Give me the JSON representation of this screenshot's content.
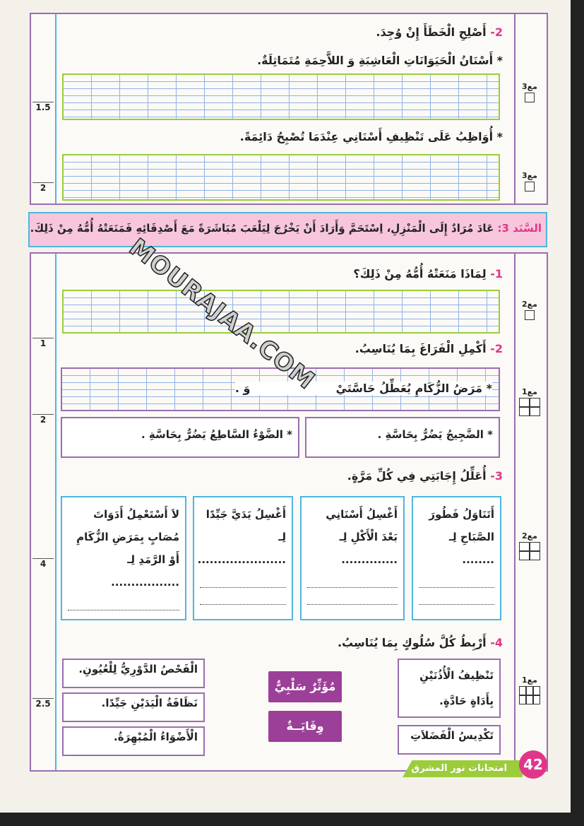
{
  "section_top": {
    "q2": {
      "number": "2-",
      "title": "أَصْلِحِ الْخَطَأَ إِنْ وُجِدَ.",
      "items": [
        "* أَسْنَانُ الْحَيَوَانَاتِ الْعَاشِبَةِ وَ اللاَّحِمَةِ مُتَمَاثِلَةٌ.",
        "* أُوَاظِبُ عَلَى تَنْظِيفِ أَسْنَانِي عِنْدَمَا تُصْبِحُ دَائِمَةً."
      ]
    },
    "scores": [
      "1.5",
      "2"
    ],
    "criteria": [
      "مع3",
      "مع3"
    ]
  },
  "sanad": {
    "label": "السَّنَد 3:",
    "text": "عَادَ مُرَادٌ إِلَى الْمَنْزِلِ، اِسْتَحَمَّ وَأَرَادَ أَنْ يَخْرُجَ لِيَلْعَبَ مُبَاشَرَةً مَعَ أَصْدِقَائِهِ فَمَنَعَتْهُ أُمُّهُ مِنْ ذَلِكَ."
  },
  "watermark": "MOURAJAA.COM",
  "section_bottom": {
    "q1": {
      "number": "1-",
      "title": "لِمَاذَا مَنَعَتْهُ أُمُّهُ مِنْ ذَلِكَ؟"
    },
    "q2": {
      "number": "2-",
      "title": "أَكْمِلِ الْفَرَاغَ بِمَا يُنَاسِبُ.",
      "item1": "* مَرَضُ الزُّكَامِ يُعَطِّلُ حَاسَّتَيْ",
      "item1_and": "وَ",
      "item2": "* الضَّجِيجُ يَضُرُّ بِحَاسَّةِ",
      "item3": "* الضَّوْءُ السَّاطِعُ يَضُرُّ بِحَاسَّةِ"
    },
    "q3": {
      "number": "3-",
      "title": "أُعَلِّلُ إِجَابَتِي فِي كُلِّ مَرَّةٍ.",
      "boxes": [
        "أَتَنَاوَلُ فَطُورَ الصَّبَاحِ لِـ ........",
        "أَغْسِلُ أَسْنَانِي بَعْدَ الْأَكْلِ لِـ ..............",
        "أَغْسِلُ يَدَيَّ جَيِّدًا لِـ ......................",
        "لاَ أَسْتَعْمِلُ أَدَوَاتَ مُصَابٍ بِمَرَضِ الزُّكَامِ أَوْ الرَّمَدِ لِـ ................."
      ]
    },
    "q4": {
      "number": "4-",
      "title": "أَرْبِطُ كُلَّ سُلُوكٍ بِمَا يُنَاسِبُ.",
      "right": [
        "تَنْظِيفُ الْأُذُنَيْنِ بِأَدَاةٍ حَادَّةٍ.",
        "تَكْدِيسُ الْفَضَلاَتِ"
      ],
      "middle": [
        "مُؤَثِّرٌ سَلْبِيٌّ",
        "وِقَايَــةٌ"
      ],
      "left": [
        "الْفَحْصُ الدَّوْرِيُّ لِلْعُيُونِ.",
        "نَظَافَةُ الْيَدَيْنِ جَيِّدًا.",
        "الْأَضْوَاءُ الْمُبْهِرَةُ."
      ]
    },
    "scores": [
      "1",
      "2",
      "4",
      "2.5"
    ],
    "criteria": [
      "مع2",
      "مع1",
      "مع2",
      "مع1"
    ]
  },
  "footer": {
    "page_number": "42",
    "brand": "امتحانات نور المشرق"
  },
  "colors": {
    "pink": "#e0368a",
    "purple": "#9a6db0",
    "blue": "#4fb6e0",
    "green": "#9ccc3c",
    "sanad_bg": "#f7c6dc"
  }
}
